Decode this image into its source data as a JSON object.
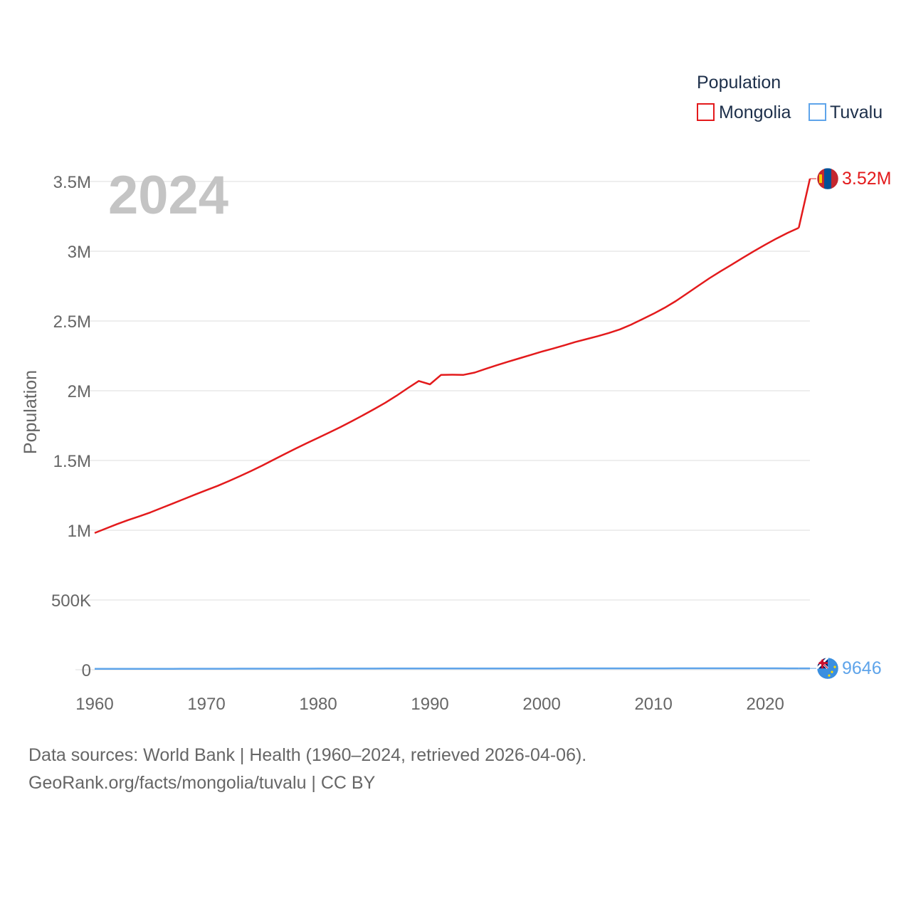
{
  "chart_data": {
    "type": "line",
    "title": "",
    "legend_title": "Population",
    "ylabel": "Population",
    "xlabel": "",
    "year_display": "2024",
    "xlim": [
      1960,
      2024
    ],
    "ylim": [
      0,
      3500000
    ],
    "x_ticks": [
      1960,
      1970,
      1980,
      1990,
      2000,
      2010,
      2020
    ],
    "y_ticks": [
      {
        "value": 0,
        "label": "0"
      },
      {
        "value": 500000,
        "label": "500K"
      },
      {
        "value": 1000000,
        "label": "1M"
      },
      {
        "value": 1500000,
        "label": "1.5M"
      },
      {
        "value": 2000000,
        "label": "2M"
      },
      {
        "value": 2500000,
        "label": "2.5M"
      },
      {
        "value": 3000000,
        "label": "3M"
      },
      {
        "value": 3500000,
        "label": "3.5M"
      }
    ],
    "grid": true,
    "legend_position": "top-right",
    "x": [
      1960,
      1961,
      1962,
      1963,
      1964,
      1965,
      1966,
      1967,
      1968,
      1969,
      1970,
      1971,
      1972,
      1973,
      1974,
      1975,
      1976,
      1977,
      1978,
      1979,
      1980,
      1981,
      1982,
      1983,
      1984,
      1985,
      1986,
      1987,
      1988,
      1989,
      1990,
      1991,
      1992,
      1993,
      1994,
      1995,
      1996,
      1997,
      1998,
      1999,
      2000,
      2001,
      2002,
      2003,
      2004,
      2005,
      2006,
      2007,
      2008,
      2009,
      2010,
      2011,
      2012,
      2013,
      2014,
      2015,
      2016,
      2017,
      2018,
      2019,
      2020,
      2021,
      2022,
      2023,
      2024
    ],
    "series": [
      {
        "name": "Mongolia",
        "color": "#e31a1c",
        "end_label": "3.52M",
        "flag": "mongolia-flag-icon",
        "values": [
          980000,
          1012000,
          1044000,
          1073000,
          1100000,
          1128000,
          1160000,
          1192000,
          1224000,
          1256000,
          1287000,
          1318000,
          1352000,
          1388000,
          1425000,
          1464000,
          1505000,
          1546000,
          1586000,
          1625000,
          1663000,
          1701000,
          1740000,
          1781000,
          1824000,
          1868000,
          1914000,
          1964000,
          2018000,
          2070000,
          2046000,
          2114000,
          2115000,
          2114000,
          2130000,
          2157000,
          2183000,
          2208000,
          2232000,
          2256000,
          2280000,
          2302000,
          2325000,
          2349000,
          2370000,
          2391000,
          2414000,
          2440000,
          2474000,
          2513000,
          2552000,
          2595000,
          2643000,
          2697000,
          2752000,
          2806000,
          2856000,
          2904000,
          2953000,
          3001000,
          3047000,
          3091000,
          3131000,
          3168000,
          3520000
        ]
      },
      {
        "name": "Tuvalu",
        "color": "#5ea4ea",
        "end_label": "9646",
        "flag": "tuvalu-flag-icon",
        "values": [
          6100,
          6200,
          6300,
          6400,
          6500,
          6600,
          6700,
          6800,
          6900,
          7000,
          7100,
          7200,
          7300,
          7400,
          7500,
          7600,
          7700,
          7800,
          7850,
          7900,
          7950,
          8000,
          8100,
          8200,
          8300,
          8400,
          8450,
          8500,
          8550,
          8600,
          8650,
          8700,
          8800,
          8900,
          9000,
          9100,
          9150,
          9200,
          9250,
          9300,
          9350,
          9400,
          9450,
          9500,
          9550,
          9600,
          9650,
          9700,
          9750,
          9800,
          9850,
          9900,
          9950,
          10000,
          10050,
          10100,
          10150,
          10200,
          10150,
          10100,
          10050,
          10000,
          9900,
          9800,
          9646
        ]
      }
    ]
  },
  "source": {
    "line1": "Data sources: World Bank | Health (1960–2024, retrieved 2026-04-06).",
    "line2": "GeoRank.org/facts/mongolia/tuvalu | CC BY"
  }
}
